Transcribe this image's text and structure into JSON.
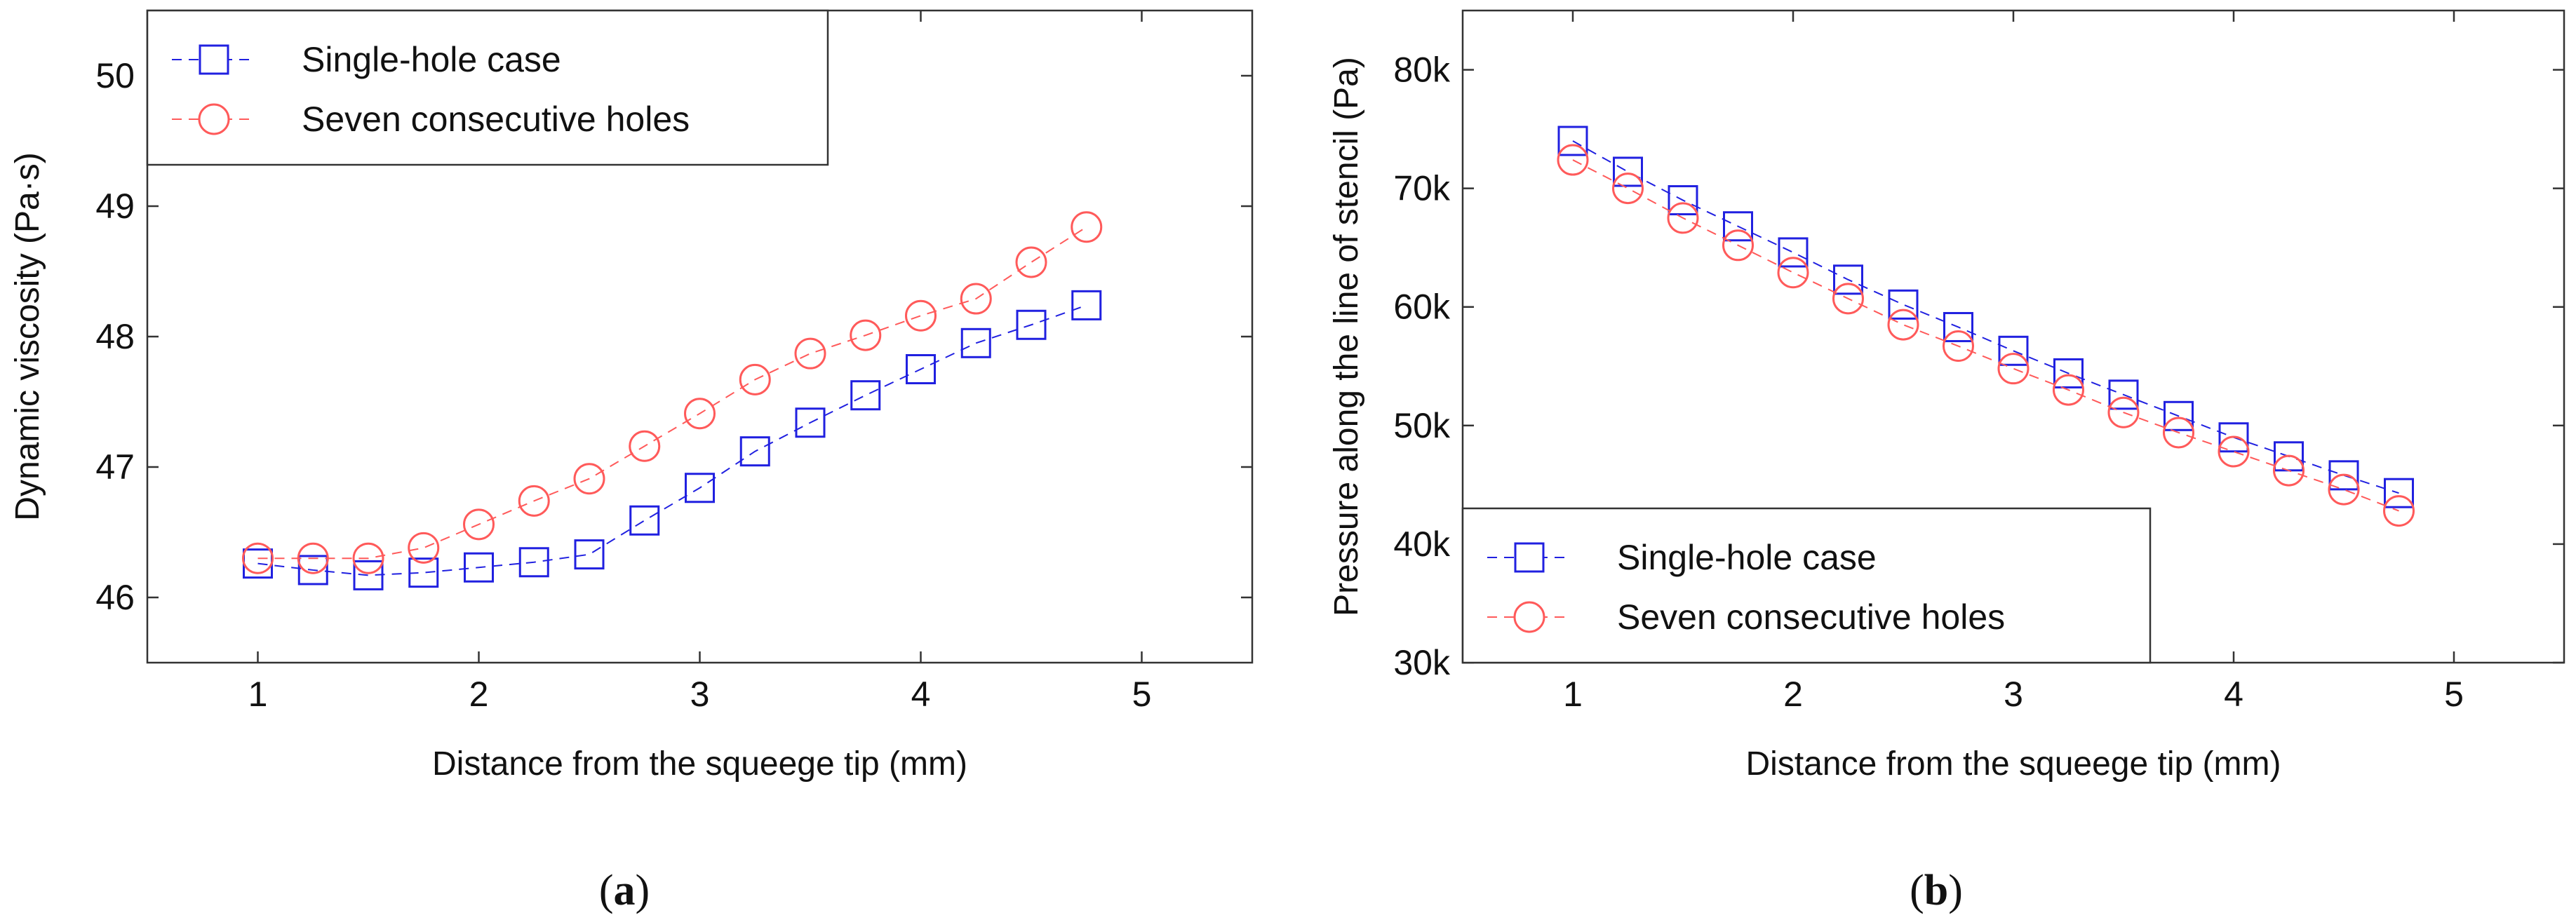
{
  "colors": {
    "single_hole": "#2020e0",
    "seven_holes": "#ff5a5a"
  },
  "chart_data": [
    {
      "id": "a",
      "type": "scatter",
      "caption_open": "(",
      "caption_letter": "a",
      "caption_close": ")",
      "xlabel": "Distance from the squeege tip (mm)",
      "ylabel": "Dynamic viscosity (Pa·s)",
      "xlim": [
        0.5,
        5.5
      ],
      "ylim": [
        45.5,
        50.5
      ],
      "xticks": [
        1,
        2,
        3,
        4,
        5
      ],
      "xtick_labels": [
        "1",
        "2",
        "3",
        "4",
        "5"
      ],
      "yticks": [
        46,
        47,
        48,
        49,
        50
      ],
      "ytick_labels": [
        "46",
        "47",
        "48",
        "49",
        "50"
      ],
      "legend_position": "top-left",
      "series": [
        {
          "name": "Single-hole case",
          "marker": "square",
          "color": "#2020e0",
          "x": [
            1.0,
            1.25,
            1.5,
            1.75,
            2.0,
            2.25,
            2.5,
            2.75,
            3.0,
            3.25,
            3.5,
            3.75,
            4.0,
            4.25,
            4.5,
            4.75
          ],
          "y": [
            46.26,
            46.21,
            46.17,
            46.19,
            46.23,
            46.27,
            46.33,
            46.59,
            46.84,
            47.12,
            47.34,
            47.55,
            47.75,
            47.95,
            48.09,
            48.24
          ]
        },
        {
          "name": "Seven consecutive holes",
          "marker": "circle",
          "color": "#ff5a5a",
          "x": [
            1.0,
            1.25,
            1.5,
            1.75,
            2.0,
            2.25,
            2.5,
            2.75,
            3.0,
            3.25,
            3.5,
            3.75,
            4.0,
            4.25,
            4.5,
            4.75
          ],
          "y": [
            46.3,
            46.3,
            46.3,
            46.38,
            46.56,
            46.74,
            46.91,
            47.16,
            47.41,
            47.67,
            47.87,
            48.01,
            48.16,
            48.29,
            48.57,
            48.84
          ]
        }
      ]
    },
    {
      "id": "b",
      "type": "scatter",
      "caption_open": "(",
      "caption_letter": "b",
      "caption_close": ")",
      "xlabel": "Distance from the squeege tip (mm)",
      "ylabel": "Pressure along the line of stencil (Pa)",
      "xlim": [
        0.5,
        5.5
      ],
      "ylim": [
        30000,
        85000
      ],
      "xticks": [
        1,
        2,
        3,
        4,
        5
      ],
      "xtick_labels": [
        "1",
        "2",
        "3",
        "4",
        "5"
      ],
      "yticks": [
        30000,
        40000,
        50000,
        60000,
        70000,
        80000
      ],
      "ytick_labels": [
        "30k",
        "40k",
        "50k",
        "60k",
        "70k",
        "80k"
      ],
      "legend_position": "bottom-left",
      "series": [
        {
          "name": "Single-hole case",
          "marker": "square",
          "color": "#2020e0",
          "x": [
            1.0,
            1.25,
            1.5,
            1.75,
            2.0,
            2.25,
            2.5,
            2.75,
            3.0,
            3.25,
            3.5,
            3.75,
            4.0,
            4.25,
            4.5,
            4.75
          ],
          "y": [
            74000,
            71400,
            69000,
            66800,
            64600,
            62300,
            60200,
            58300,
            56300,
            54400,
            52600,
            50800,
            49000,
            47400,
            45800,
            44300
          ]
        },
        {
          "name": "Seven consecutive holes",
          "marker": "circle",
          "color": "#ff5a5a",
          "x": [
            1.0,
            1.25,
            1.5,
            1.75,
            2.0,
            2.25,
            2.5,
            2.75,
            3.0,
            3.25,
            3.5,
            3.75,
            4.0,
            4.25,
            4.5,
            4.75
          ],
          "y": [
            72400,
            70000,
            67500,
            65200,
            62900,
            60700,
            58500,
            56700,
            54800,
            53000,
            51100,
            49400,
            47800,
            46200,
            44600,
            42800
          ]
        }
      ]
    }
  ]
}
